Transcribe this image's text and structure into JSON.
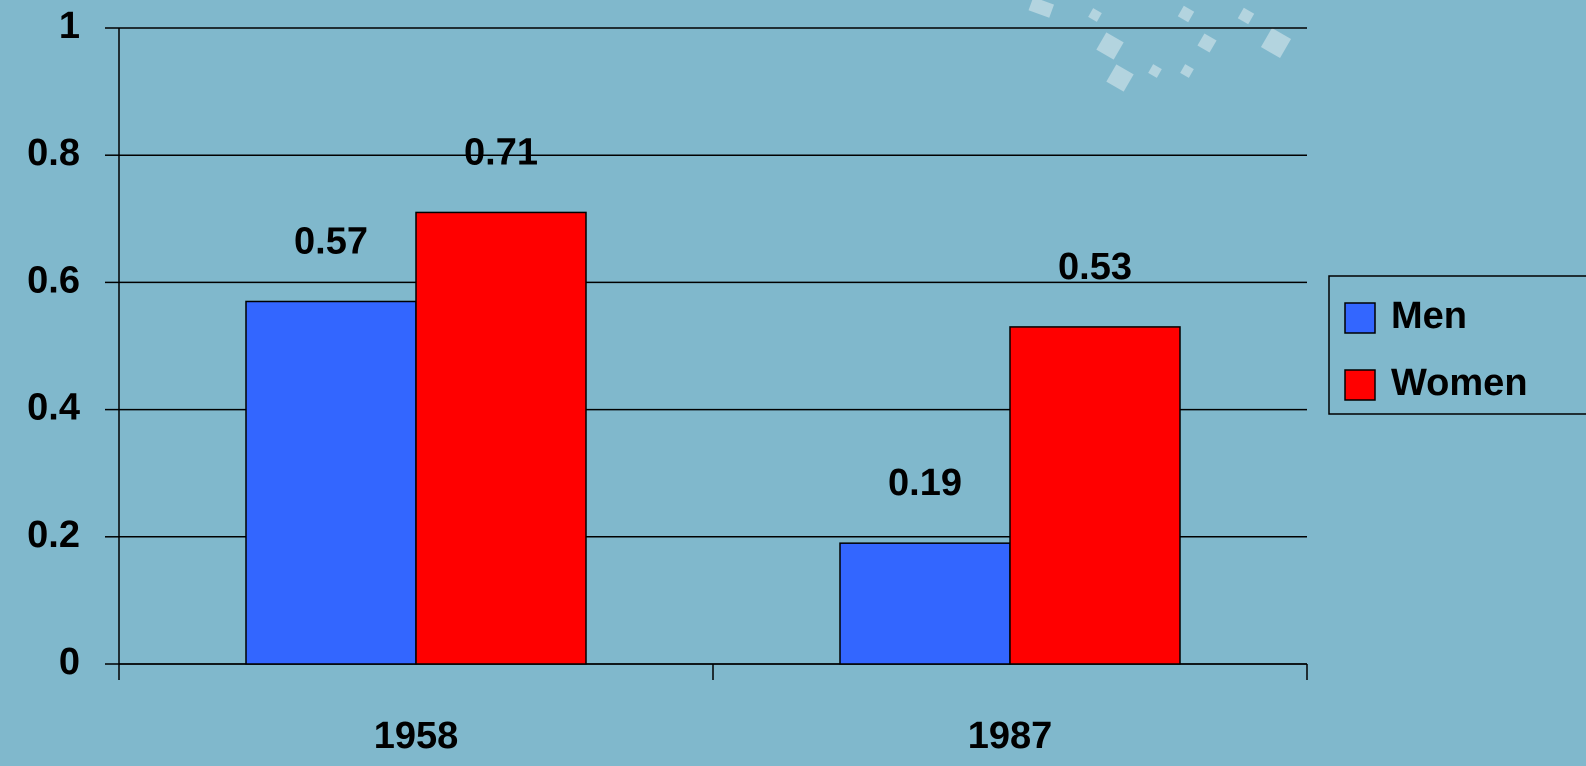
{
  "chart_data": {
    "type": "bar",
    "categories": [
      "1958",
      "1987"
    ],
    "series": [
      {
        "name": "Men",
        "color": "#3366ff",
        "values": [
          0.57,
          0.19
        ]
      },
      {
        "name": "Women",
        "color": "#ff0000",
        "values": [
          0.71,
          0.53
        ]
      }
    ],
    "ylim": [
      0,
      1
    ],
    "yticks": [
      0,
      0.2,
      0.4,
      0.6,
      0.8,
      1
    ],
    "grid": true,
    "legend": "right"
  }
}
